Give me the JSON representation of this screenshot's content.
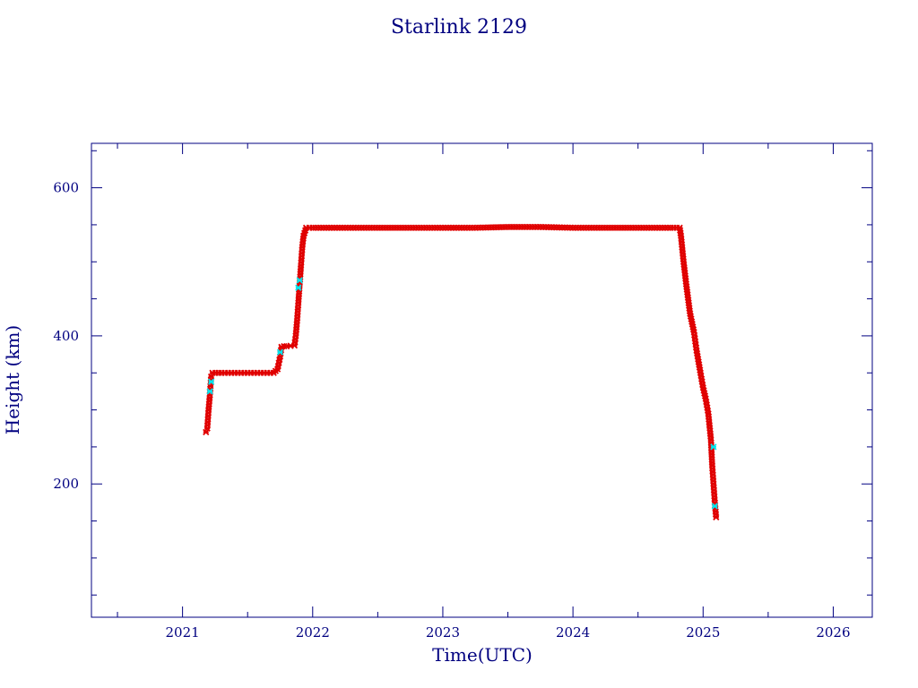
{
  "chart_data": {
    "type": "scatter",
    "title": "Starlink 2129",
    "xlabel": "Time(UTC)",
    "ylabel": "Height (km)",
    "xlim": [
      2020.3,
      2026.3
    ],
    "ylim": [
      20,
      660
    ],
    "x_ticks": [
      2021,
      2022,
      2023,
      2024,
      2025,
      2026
    ],
    "y_ticks": [
      200,
      400,
      600
    ],
    "x_tick_labels": [
      "2021",
      "2022",
      "2023",
      "2024",
      "2025",
      "2026"
    ],
    "y_tick_labels": [
      "200",
      "400",
      "600"
    ],
    "grid": false,
    "colors": {
      "frame": "#000080",
      "text": "#000080",
      "primary": "#e00000",
      "secondary": "#00e5ee",
      "dark": "#555555"
    },
    "series": [
      {
        "color": "#e00000",
        "x": [
          2021.18,
          2021.19,
          2021.2,
          2021.21,
          2021.22,
          2021.23,
          2021.3,
          2021.4,
          2021.5,
          2021.6,
          2021.7,
          2021.73,
          2021.75,
          2021.76,
          2021.78,
          2021.8,
          2021.86,
          2021.87,
          2021.88,
          2021.89,
          2021.91,
          2021.92,
          2021.93,
          2021.95,
          2022.0,
          2022.25,
          2022.5,
          2022.75,
          2023.0,
          2023.25,
          2023.5,
          2023.75,
          2024.0,
          2024.25,
          2024.5,
          2024.75,
          2024.82,
          2024.83,
          2024.85,
          2024.87,
          2024.9,
          2024.93,
          2024.95,
          2024.98,
          2025.0,
          2025.02,
          2025.04,
          2025.06,
          2025.07,
          2025.08,
          2025.09,
          2025.1
        ],
        "y": [
          270,
          275,
          300,
          320,
          345,
          350,
          350,
          350,
          350,
          350,
          350,
          355,
          372,
          385,
          386,
          386,
          387,
          400,
          420,
          445,
          495,
          520,
          535,
          546,
          546,
          546,
          546,
          546,
          546,
          546,
          547,
          547,
          546,
          546,
          546,
          546,
          546,
          535,
          500,
          470,
          430,
          405,
          380,
          350,
          330,
          315,
          295,
          260,
          225,
          200,
          175,
          155
        ]
      },
      {
        "color": "#00e5ee",
        "x": [
          2021.21,
          2021.22,
          2021.75,
          2021.89,
          2021.9,
          2025.08,
          2025.09
        ],
        "y": [
          325,
          338,
          378,
          465,
          475,
          250,
          170
        ]
      }
    ]
  }
}
